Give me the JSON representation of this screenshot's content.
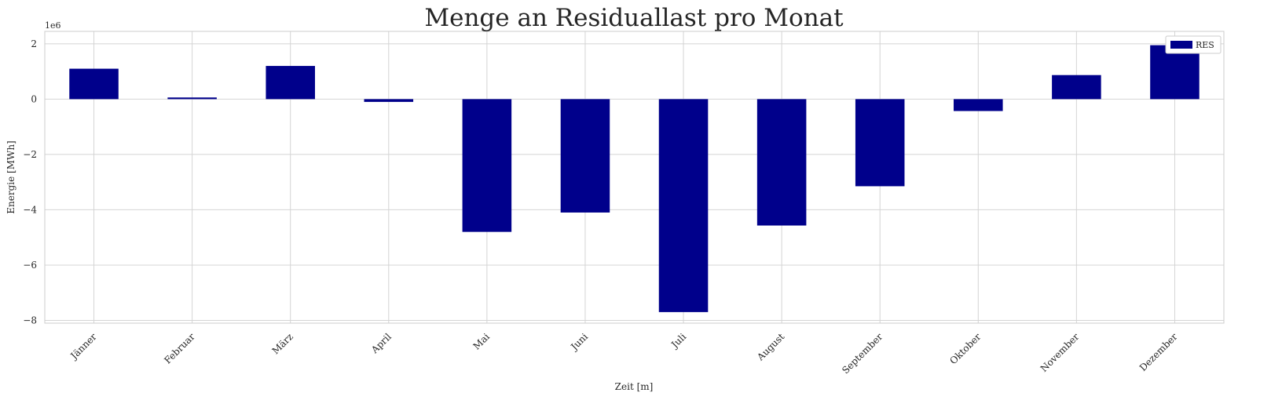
{
  "chart_data": {
    "type": "bar",
    "title": "Menge an Residuallast pro Monat",
    "xlabel": "Zeit [m]",
    "ylabel": "Energie [MWh]",
    "y_offset_label": "1e6",
    "y_scale": 1000000,
    "ylim": [
      -8.1,
      2.45
    ],
    "yticks": [
      2,
      0,
      -2,
      -4,
      -6,
      -8
    ],
    "ytick_labels": [
      "2",
      "0",
      "−2",
      "−4",
      "−6",
      "−8"
    ],
    "grid": true,
    "legend_position": "top-right",
    "categories": [
      "Jänner",
      "Februar",
      "März",
      "April",
      "Mai",
      "Juni",
      "Juli",
      "August",
      "September",
      "Oktober",
      "November",
      "Dezember"
    ],
    "series": [
      {
        "name": "RES",
        "color": "#00008b",
        "values": [
          1100000,
          60000,
          1200000,
          -100000,
          -4800000,
          -4100000,
          -7700000,
          -4570000,
          -3150000,
          -430000,
          870000,
          1950000
        ]
      }
    ]
  }
}
